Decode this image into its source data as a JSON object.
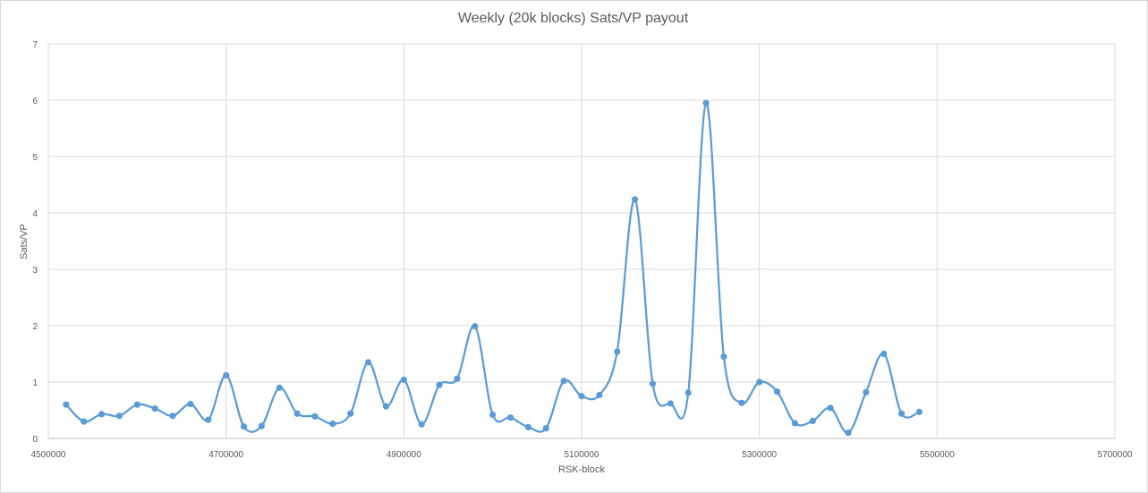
{
  "chart_data": {
    "type": "line",
    "title": "Weekly (20k blocks) Sats/VP payout",
    "xlabel": "RSK-block",
    "ylabel": "Sats/VP",
    "xlim": [
      4500000,
      5700000
    ],
    "ylim": [
      0,
      7
    ],
    "x_ticks": [
      "4500000",
      "4700000",
      "4900000",
      "5100000",
      "5300000",
      "5500000",
      "5700000"
    ],
    "y_ticks": [
      "0",
      "1",
      "2",
      "3",
      "4",
      "5",
      "6",
      "7"
    ],
    "grid": true,
    "smoothed": true,
    "series": [
      {
        "color": "#5b9bd5",
        "x": [
          4520000,
          4540000,
          4560000,
          4580000,
          4600000,
          4620000,
          4640000,
          4660000,
          4680000,
          4700000,
          4720000,
          4740000,
          4760000,
          4780000,
          4800000,
          4820000,
          4840000,
          4860000,
          4880000,
          4900000,
          4920000,
          4940000,
          4960000,
          4980000,
          5000000,
          5020000,
          5040000,
          5060000,
          5080000,
          5100000,
          5120000,
          5140000,
          5160000,
          5180000,
          5200000,
          5220000,
          5240000,
          5260000,
          5280000,
          5300000,
          5320000,
          5340000,
          5360000,
          5380000,
          5400000,
          5420000,
          5440000,
          5460000,
          5480000
        ],
        "y": [
          0.6,
          0.3,
          0.43,
          0.4,
          0.6,
          0.53,
          0.4,
          0.61,
          0.33,
          1.12,
          0.21,
          0.22,
          0.9,
          0.44,
          0.39,
          0.26,
          0.44,
          1.35,
          0.57,
          1.04,
          0.25,
          0.95,
          1.06,
          1.99,
          0.42,
          0.37,
          0.2,
          0.18,
          1.02,
          0.75,
          0.77,
          1.54,
          4.24,
          0.97,
          0.62,
          0.81,
          5.95,
          1.45,
          0.63,
          1.0,
          0.83,
          0.27,
          0.31,
          0.54,
          0.1,
          0.82,
          1.5,
          0.44,
          0.47
        ]
      }
    ]
  }
}
